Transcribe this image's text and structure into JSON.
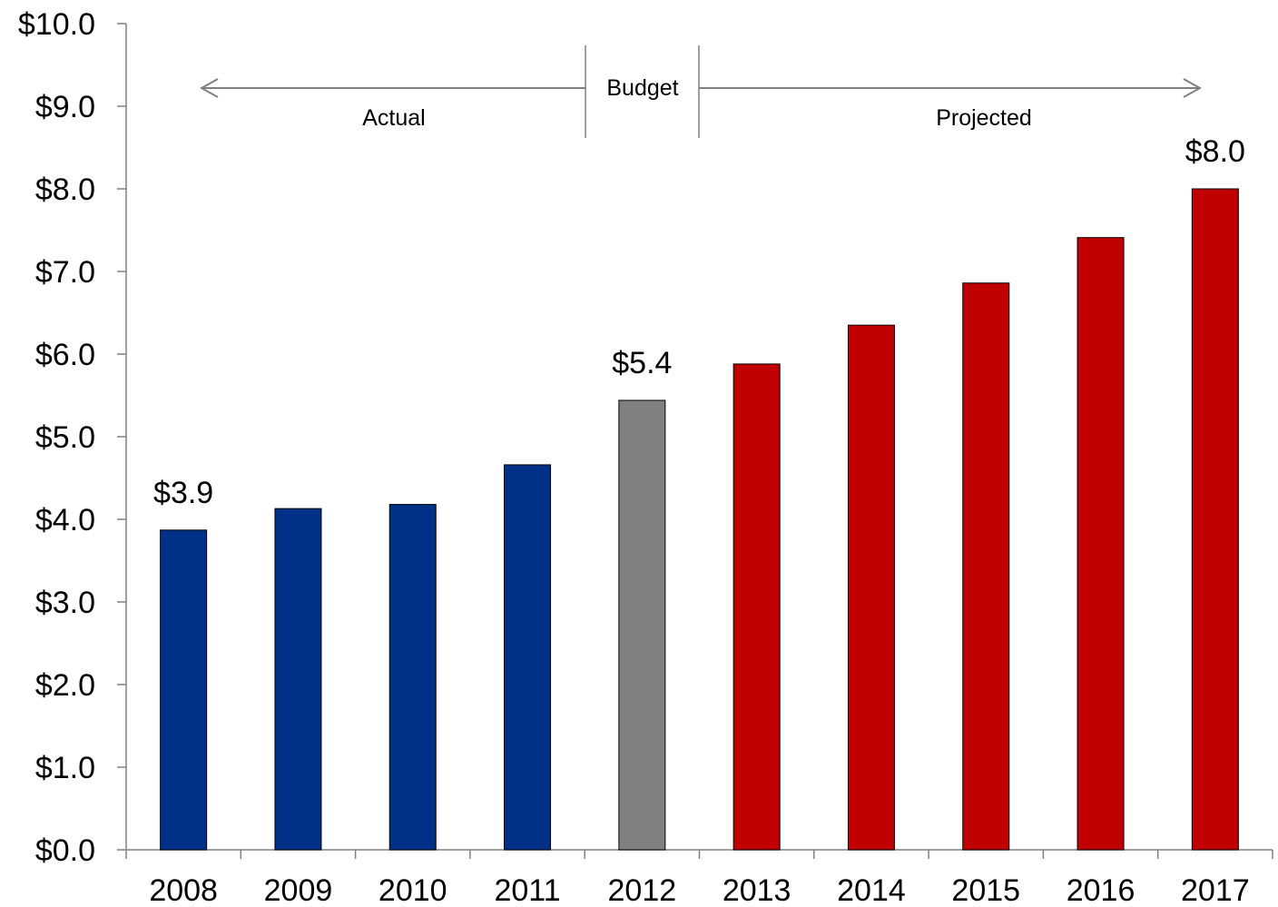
{
  "chart_data": {
    "type": "bar",
    "title": "",
    "xlabel": "",
    "ylabel": "",
    "categories": [
      "2008",
      "2009",
      "2010",
      "2011",
      "2012",
      "2013",
      "2014",
      "2015",
      "2016",
      "2017"
    ],
    "values": [
      3.87,
      4.13,
      4.18,
      4.66,
      5.44,
      5.88,
      6.35,
      6.86,
      7.41,
      8.0
    ],
    "period": [
      "Actual",
      "Actual",
      "Actual",
      "Actual",
      "Budget",
      "Projected",
      "Projected",
      "Projected",
      "Projected",
      "Projected"
    ],
    "period_colors": {
      "Actual": "#003087",
      "Budget": "#808080",
      "Projected": "#c00000"
    },
    "ylim": [
      0,
      10
    ],
    "yticks": [
      0,
      1,
      2,
      3,
      4,
      5,
      6,
      7,
      8,
      9,
      10
    ],
    "ytick_labels": [
      "$0.0",
      "$1.0",
      "$2.0",
      "$3.0",
      "$4.0",
      "$5.0",
      "$6.0",
      "$7.0",
      "$8.0",
      "$9.0",
      "$10.0"
    ],
    "data_labels": [
      {
        "category": "2008",
        "text": "$3.9"
      },
      {
        "category": "2012",
        "text": "$5.4"
      },
      {
        "category": "2017",
        "text": "$8.0"
      }
    ],
    "period_annotations": {
      "actual_label": "Actual",
      "budget_label": "Budget",
      "projected_label": "Projected"
    },
    "grid": false,
    "legend": "none"
  }
}
